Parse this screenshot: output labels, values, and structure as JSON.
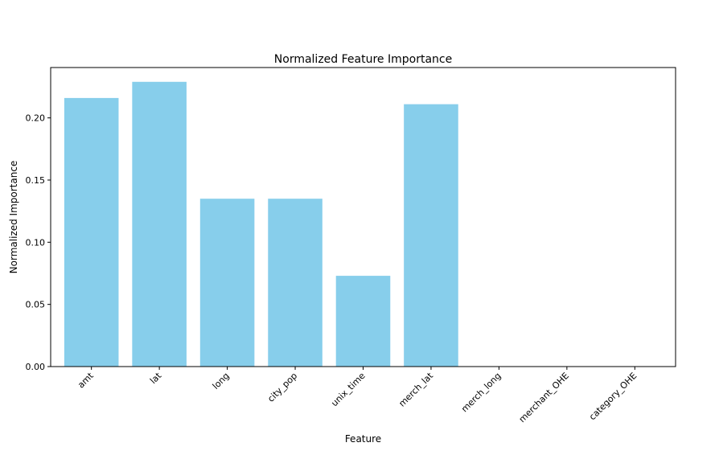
{
  "chart_data": {
    "type": "bar",
    "title": "Normalized Feature Importance",
    "xlabel": "Feature",
    "ylabel": "Normalized Importance",
    "categories": [
      "amt",
      "lat",
      "long",
      "city_pop",
      "unix_time",
      "merch_lat",
      "merch_long",
      "merchant_OHE",
      "category_OHE"
    ],
    "values": [
      0.216,
      0.229,
      0.135,
      0.135,
      0.073,
      0.211,
      0.0,
      0.0,
      0.0
    ],
    "ylim": [
      0,
      0.2405
    ],
    "yticks": [
      0.0,
      0.05,
      0.1,
      0.15,
      0.2
    ],
    "ytick_labels": [
      "0.00",
      "0.05",
      "0.10",
      "0.15",
      "0.20"
    ],
    "bar_color": "#87ceeb",
    "grid": false,
    "legend": "none"
  }
}
